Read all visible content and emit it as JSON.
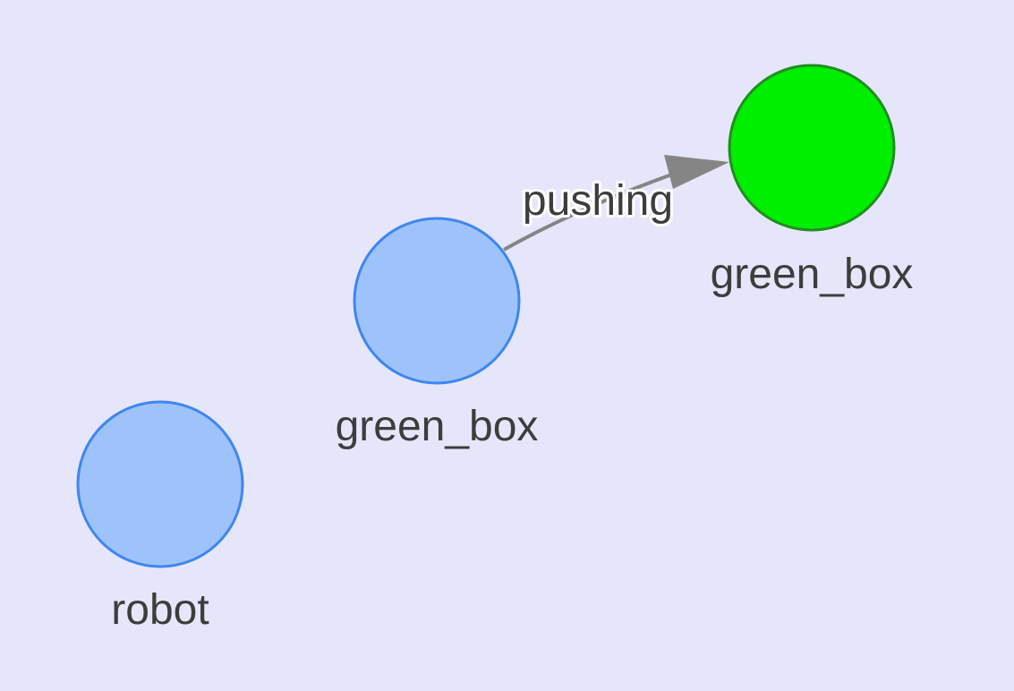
{
  "graph": {
    "background_color": "#e6e6fb",
    "nodes": [
      {
        "id": "robot",
        "label": "robot",
        "fill": "#9ec3fb",
        "stroke": "#3e86f0"
      },
      {
        "id": "green_box_a",
        "label": "green_box",
        "fill": "#9ec3fb",
        "stroke": "#3e86f0"
      },
      {
        "id": "green_box_b",
        "label": "green_box",
        "fill": "#00ee00",
        "stroke": "#1f8f1f"
      }
    ],
    "edges": [
      {
        "from": "green_box_a",
        "to": "green_box_b",
        "label": "pushing",
        "color": "#858585"
      }
    ]
  }
}
